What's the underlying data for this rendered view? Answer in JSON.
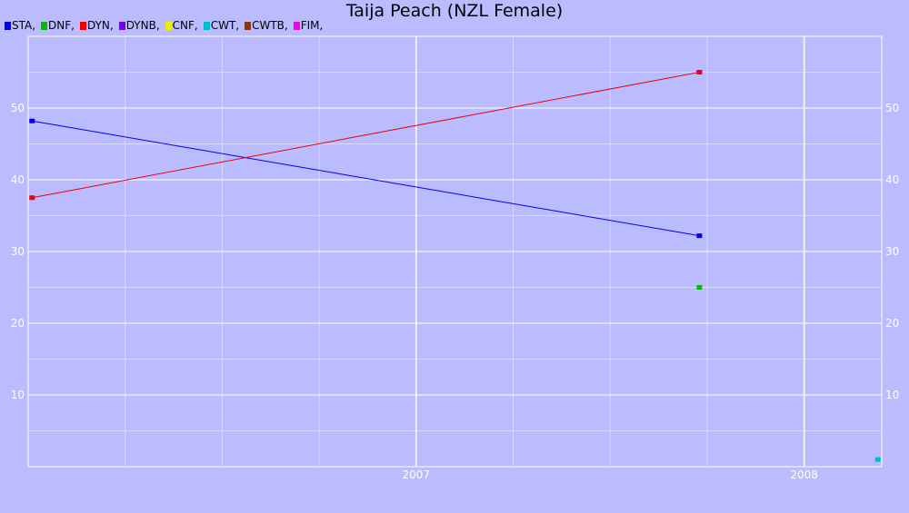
{
  "chart_data": {
    "type": "line",
    "title": "Taija Peach (NZL Female)",
    "legend": [
      {
        "name": "STA",
        "label": "STA,",
        "color": "#0000ee"
      },
      {
        "name": "DNF",
        "label": "DNF,",
        "color": "#00bb00"
      },
      {
        "name": "DYN",
        "label": "DYN,",
        "color": "#ee0000"
      },
      {
        "name": "DYNB",
        "label": "DYNB,",
        "color": "#7700ee"
      },
      {
        "name": "CNF",
        "label": "CNF,",
        "color": "#eeee00"
      },
      {
        "name": "CWT",
        "label": "CWT,",
        "color": "#00bbcc"
      },
      {
        "name": "CWTB",
        "label": "CWTB,",
        "color": "#993300"
      },
      {
        "name": "FIM",
        "label": "FIM,",
        "color": "#ee00ee"
      }
    ],
    "xlim": [
      2006.0,
      2008.2
    ],
    "ylim": [
      0,
      60
    ],
    "x_ticks": [
      {
        "value": 2007,
        "label": "2007"
      },
      {
        "value": 2008,
        "label": "2008"
      }
    ],
    "y_ticks": [
      10,
      20,
      30,
      40,
      50
    ],
    "grid": true,
    "legend_position": "top-left",
    "series": [
      {
        "name": "STA",
        "color": "#0000ee",
        "points": [
          [
            2006.01,
            48.2
          ],
          [
            2007.73,
            32.2
          ]
        ]
      },
      {
        "name": "DNF",
        "color": "#00bb00",
        "points": [
          [
            2007.73,
            25
          ]
        ]
      },
      {
        "name": "DYN",
        "color": "#ee0000",
        "points": [
          [
            2006.01,
            37.5
          ],
          [
            2007.73,
            55
          ]
        ]
      },
      {
        "name": "CWT",
        "color": "#00bbcc",
        "points": [
          [
            2008.19,
            1
          ]
        ]
      }
    ]
  }
}
